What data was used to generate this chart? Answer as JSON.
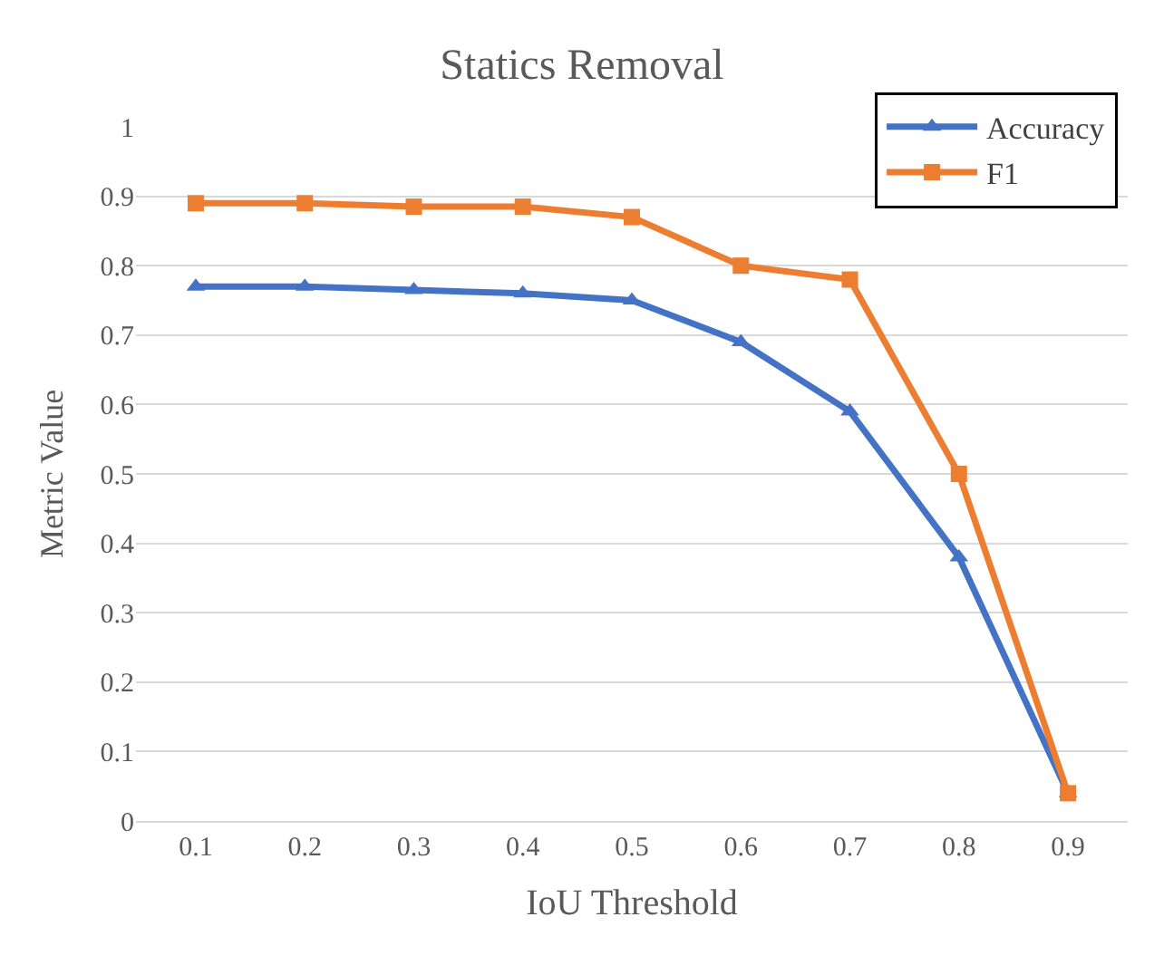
{
  "chart_data": {
    "type": "line",
    "title": "Statics Removal",
    "xlabel": "IoU Threshold",
    "ylabel": "Metric Value",
    "categories": [
      "0.1",
      "0.2",
      "0.3",
      "0.4",
      "0.5",
      "0.6",
      "0.7",
      "0.8",
      "0.9"
    ],
    "series": [
      {
        "name": "Accuracy",
        "color": "#4472c4",
        "marker": "triangle",
        "values": [
          0.77,
          0.77,
          0.765,
          0.76,
          0.75,
          0.69,
          0.59,
          0.38,
          0.04
        ]
      },
      {
        "name": "F1",
        "color": "#ed7d31",
        "marker": "square",
        "values": [
          0.89,
          0.89,
          0.885,
          0.885,
          0.87,
          0.8,
          0.78,
          0.5,
          0.04
        ]
      }
    ],
    "ylim": [
      0,
      1
    ],
    "yticks": [
      0,
      0.1,
      0.2,
      0.3,
      0.4,
      0.5,
      0.6,
      0.7,
      0.8,
      0.9,
      1
    ],
    "grid": "y",
    "legend": "top right",
    "line_style": "solid"
  }
}
